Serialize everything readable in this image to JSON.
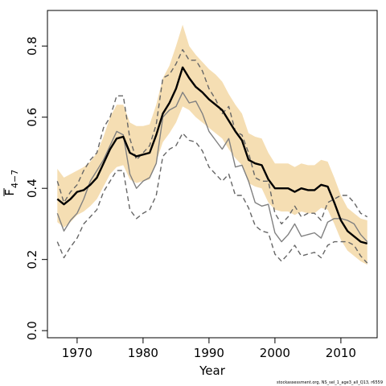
{
  "chart_data": {
    "type": "line",
    "xlabel": "Year",
    "ylabel": "F",
    "ylabel_subscript": "4−7",
    "xlim": [
      1965.5,
      2015.5
    ],
    "ylim": [
      -0.02,
      0.9
    ],
    "x_ticks": [
      1970,
      1980,
      1990,
      2000,
      2010
    ],
    "y_ticks": [
      0.0,
      0.2,
      0.4,
      0.6,
      0.8
    ],
    "x_tick_labels": [
      "1970",
      "1980",
      "1990",
      "2000",
      "2010"
    ],
    "y_tick_labels": [
      "0.0",
      "0.2",
      "0.4",
      "0.6",
      "0.8"
    ],
    "colors": {
      "band": "#f5deb3",
      "estimate": "#000000",
      "previous": "#808080",
      "previous_ci": "#666666"
    },
    "years": [
      1967,
      1968,
      1969,
      1970,
      1971,
      1972,
      1973,
      1974,
      1975,
      1976,
      1977,
      1978,
      1979,
      1980,
      1981,
      1982,
      1983,
      1984,
      1985,
      1986,
      1987,
      1988,
      1989,
      1990,
      1991,
      1992,
      1993,
      1994,
      1995,
      1996,
      1997,
      1998,
      1999,
      2000,
      2001,
      2002,
      2003,
      2004,
      2005,
      2006,
      2007,
      2008,
      2009,
      2010,
      2011,
      2012,
      2013,
      2014
    ],
    "series": [
      {
        "role": "estimate",
        "style": "solid-thick",
        "values": [
          0.37,
          0.355,
          0.37,
          0.39,
          0.395,
          0.41,
          0.43,
          0.47,
          0.51,
          0.54,
          0.545,
          0.5,
          0.49,
          0.495,
          0.5,
          0.55,
          0.61,
          0.64,
          0.68,
          0.74,
          0.71,
          0.685,
          0.67,
          0.65,
          0.635,
          0.62,
          0.59,
          0.56,
          0.535,
          0.48,
          0.47,
          0.465,
          0.425,
          0.4,
          0.4,
          0.4,
          0.39,
          0.4,
          0.395,
          0.395,
          0.41,
          0.405,
          0.36,
          0.31,
          0.28,
          0.265,
          0.25,
          0.245
        ]
      },
      {
        "role": "ci-upper",
        "style": "band",
        "values": [
          0.455,
          0.43,
          0.44,
          0.45,
          0.46,
          0.475,
          0.5,
          0.545,
          0.6,
          0.635,
          0.635,
          0.585,
          0.575,
          0.575,
          0.58,
          0.635,
          0.71,
          0.745,
          0.8,
          0.86,
          0.8,
          0.775,
          0.755,
          0.735,
          0.72,
          0.7,
          0.665,
          0.635,
          0.61,
          0.555,
          0.545,
          0.54,
          0.5,
          0.47,
          0.47,
          0.47,
          0.46,
          0.47,
          0.465,
          0.465,
          0.48,
          0.475,
          0.43,
          0.38,
          0.345,
          0.33,
          0.315,
          0.31
        ]
      },
      {
        "role": "ci-lower",
        "style": "band",
        "values": [
          0.305,
          0.29,
          0.305,
          0.325,
          0.335,
          0.35,
          0.37,
          0.405,
          0.44,
          0.46,
          0.465,
          0.425,
          0.415,
          0.42,
          0.425,
          0.475,
          0.53,
          0.555,
          0.585,
          0.63,
          0.62,
          0.6,
          0.585,
          0.57,
          0.555,
          0.54,
          0.51,
          0.485,
          0.465,
          0.415,
          0.405,
          0.4,
          0.36,
          0.34,
          0.335,
          0.335,
          0.325,
          0.335,
          0.33,
          0.33,
          0.345,
          0.34,
          0.3,
          0.255,
          0.225,
          0.21,
          0.195,
          0.185
        ]
      },
      {
        "role": "previous",
        "style": "solid-grey",
        "values": [
          0.33,
          0.28,
          0.31,
          0.33,
          0.37,
          0.42,
          0.45,
          0.48,
          0.52,
          0.56,
          0.55,
          0.44,
          0.4,
          0.42,
          0.43,
          0.47,
          0.6,
          0.62,
          0.63,
          0.67,
          0.64,
          0.645,
          0.61,
          0.56,
          0.535,
          0.51,
          0.54,
          0.46,
          0.465,
          0.42,
          0.36,
          0.35,
          0.355,
          0.275,
          0.25,
          0.27,
          0.3,
          0.265,
          0.27,
          0.275,
          0.26,
          0.305,
          0.315,
          0.315,
          0.31,
          0.3,
          0.27,
          0.25
        ]
      },
      {
        "role": "previous-upper",
        "style": "dashed-grey",
        "values": [
          0.42,
          0.36,
          0.39,
          0.41,
          0.45,
          0.48,
          0.5,
          0.57,
          0.6,
          0.66,
          0.66,
          0.54,
          0.48,
          0.5,
          0.52,
          0.58,
          0.71,
          0.72,
          0.75,
          0.79,
          0.76,
          0.76,
          0.73,
          0.68,
          0.65,
          0.61,
          0.63,
          0.56,
          0.55,
          0.5,
          0.43,
          0.42,
          0.42,
          0.33,
          0.3,
          0.32,
          0.35,
          0.32,
          0.33,
          0.33,
          0.31,
          0.36,
          0.37,
          0.38,
          0.38,
          0.36,
          0.33,
          0.32
        ]
      },
      {
        "role": "previous-lower",
        "style": "dashed-grey",
        "values": [
          0.25,
          0.205,
          0.235,
          0.26,
          0.3,
          0.32,
          0.34,
          0.39,
          0.42,
          0.45,
          0.45,
          0.34,
          0.315,
          0.33,
          0.34,
          0.38,
          0.49,
          0.51,
          0.52,
          0.555,
          0.535,
          0.53,
          0.505,
          0.46,
          0.44,
          0.42,
          0.44,
          0.38,
          0.38,
          0.345,
          0.295,
          0.28,
          0.275,
          0.215,
          0.195,
          0.215,
          0.24,
          0.21,
          0.215,
          0.22,
          0.205,
          0.24,
          0.25,
          0.25,
          0.25,
          0.24,
          0.21,
          0.19
        ]
      }
    ]
  },
  "credit": "stockassessment.org, NS_sel_1_age3_all_Q13, r6559"
}
